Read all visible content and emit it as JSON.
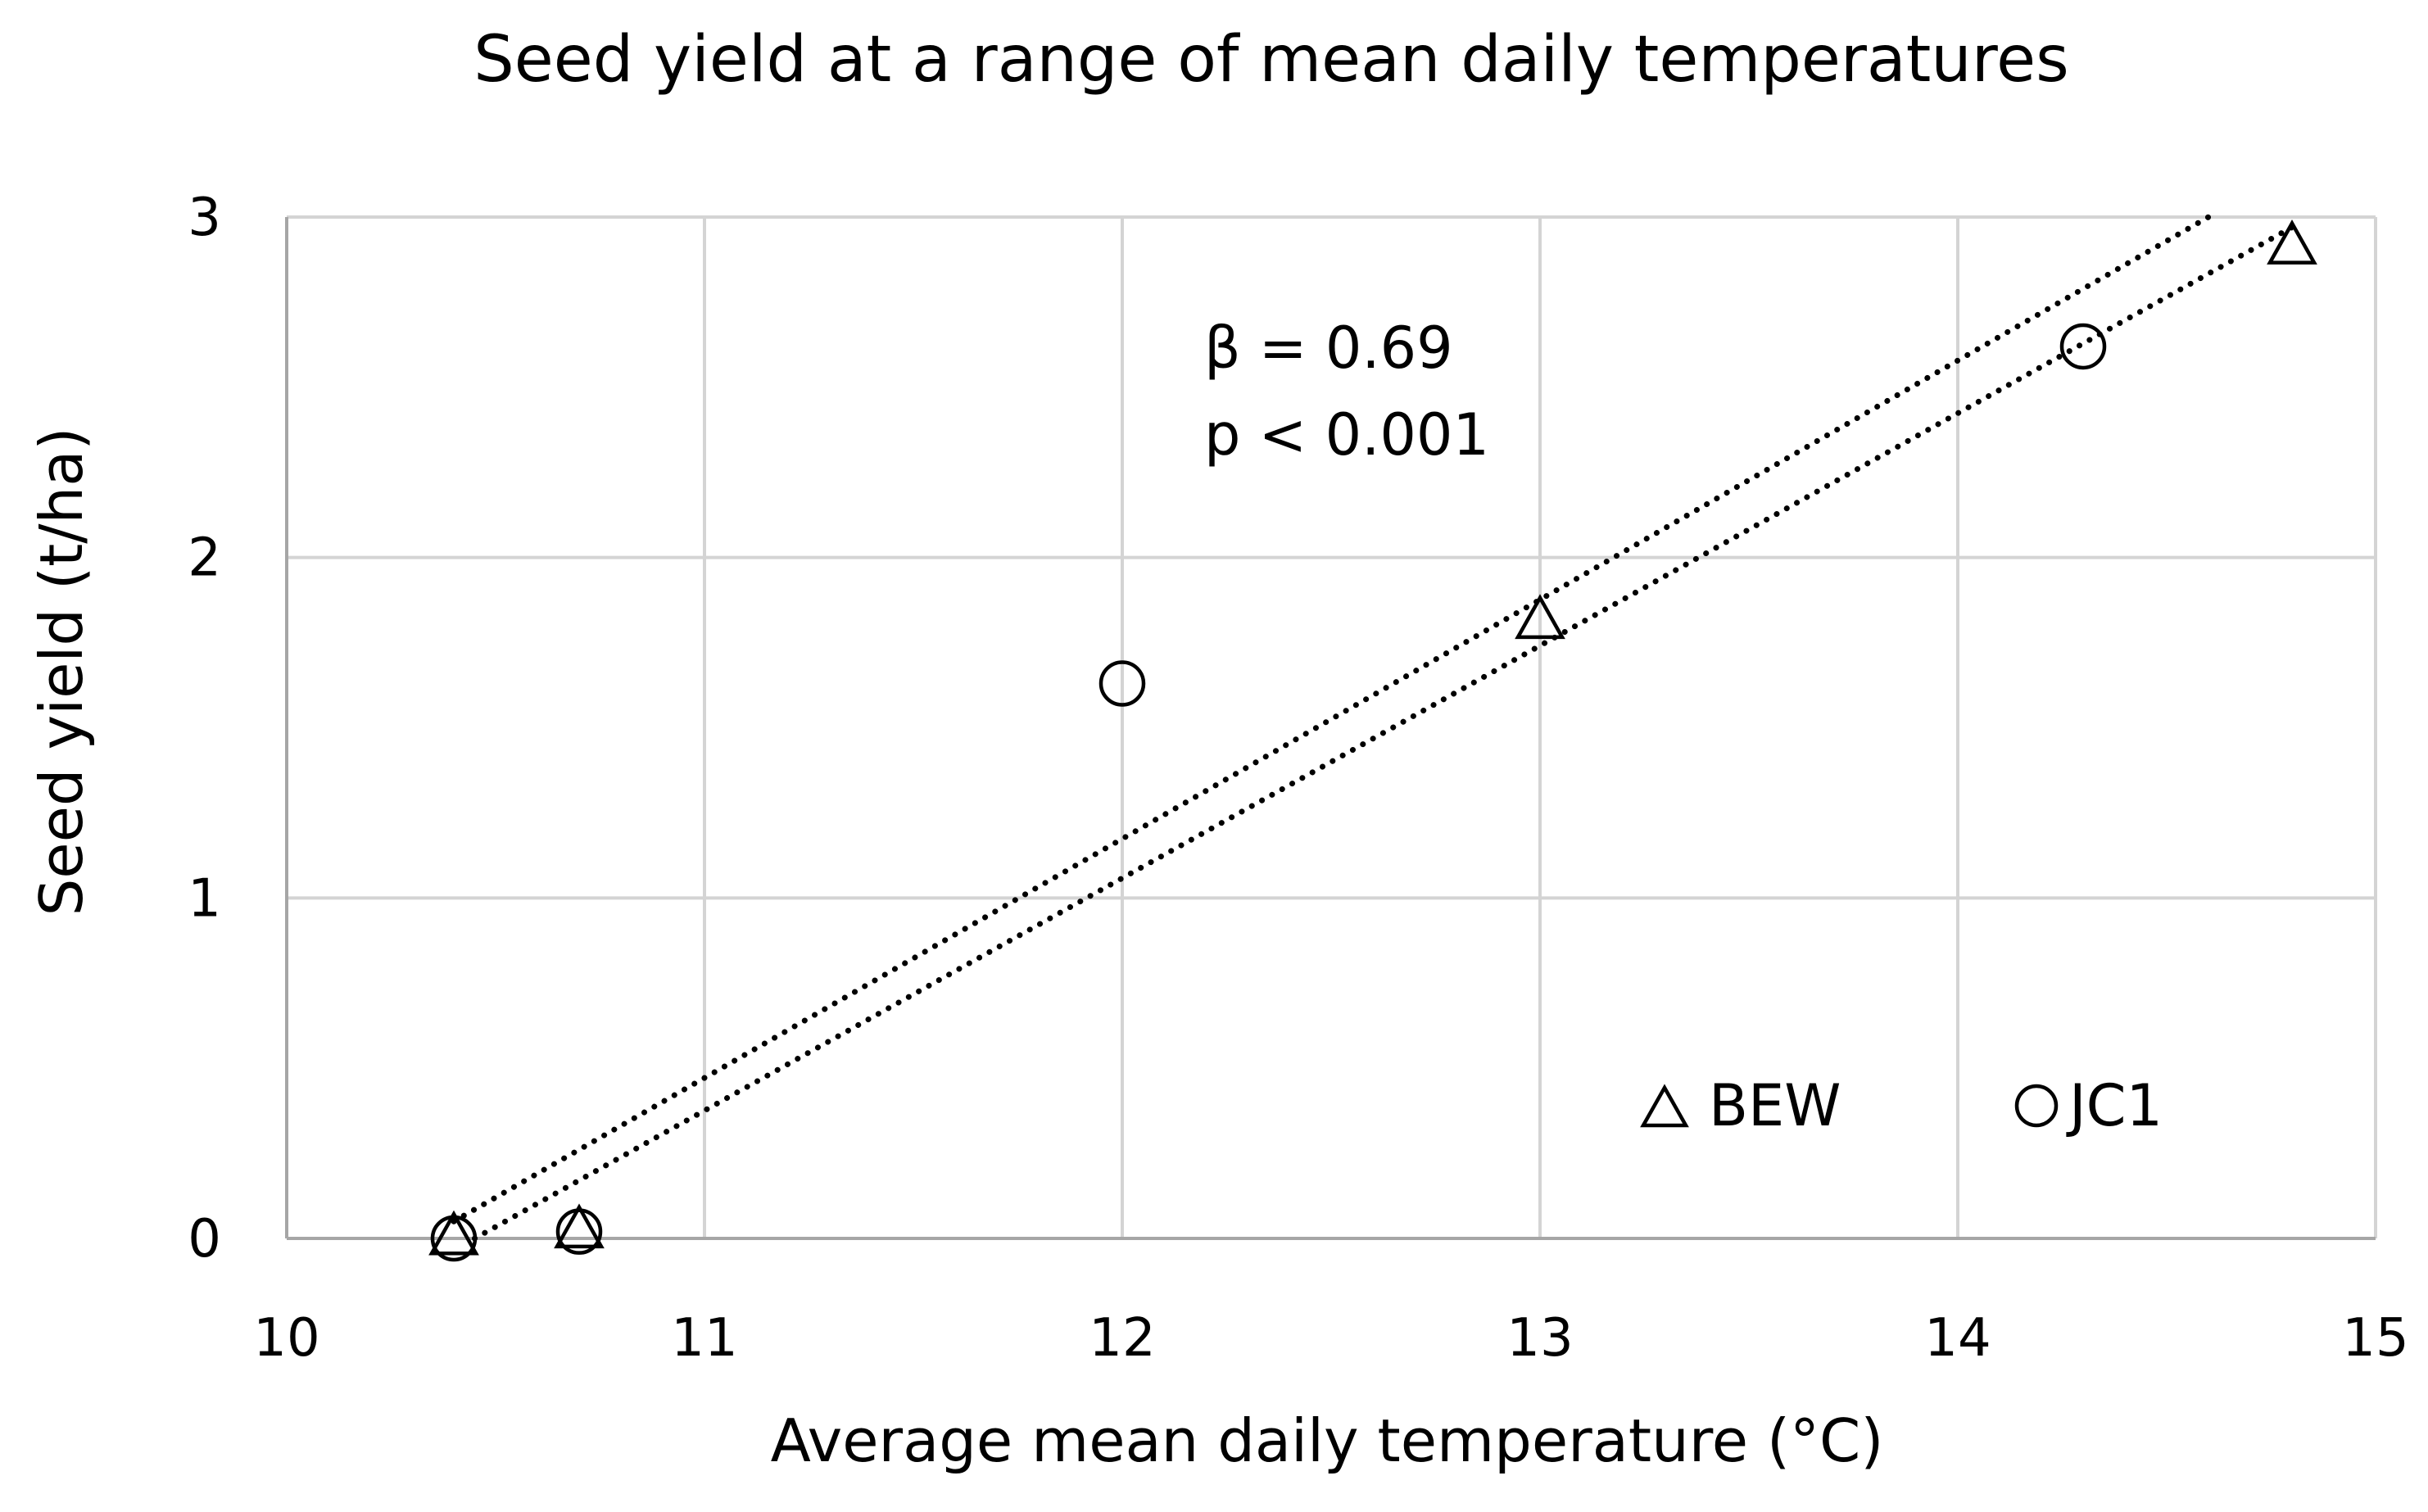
{
  "chart_data": {
    "type": "scatter",
    "title": "Seed yield at a range of mean daily temperatures",
    "xlabel": "Average mean daily temperature (°C)",
    "ylabel": "Seed yield (t/ha)",
    "xlim": [
      10,
      15
    ],
    "ylim": [
      0,
      3
    ],
    "xticks": [
      10,
      11,
      12,
      13,
      14,
      15
    ],
    "yticks": [
      0,
      1,
      2,
      3
    ],
    "grid": true,
    "series": [
      {
        "name": "BEW",
        "marker": "triangle",
        "x": [
          10.4,
          10.7,
          13.0,
          14.8
        ],
        "y": [
          0.0,
          0.02,
          1.81,
          2.91
        ],
        "trendline": {
          "type": "linear",
          "x": [
            10.45,
            14.8
          ],
          "y": [
            0.0,
            2.97
          ]
        }
      },
      {
        "name": "JC1",
        "marker": "circle",
        "x": [
          10.4,
          10.7,
          12.0,
          14.3
        ],
        "y": [
          0.0,
          0.02,
          1.63,
          2.62
        ],
        "trendline": {
          "type": "linear",
          "x": [
            10.4,
            14.6
          ],
          "y": [
            0.05,
            3.0
          ]
        }
      }
    ],
    "annotations": [
      "β = 0.69",
      "p < 0.001"
    ],
    "legend": {
      "position": "bottom-right",
      "orientation": "horizontal"
    }
  }
}
